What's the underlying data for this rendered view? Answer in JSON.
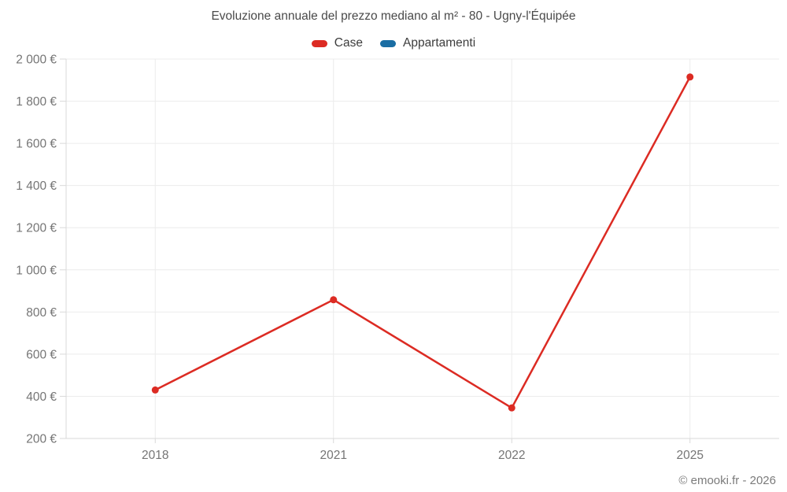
{
  "header": {
    "title": "Evoluzione annuale del prezzo mediano al m² - 80 - Ugny-l'Équipée"
  },
  "legend": {
    "items": [
      {
        "label": "Case",
        "color": "#dc2b23"
      },
      {
        "label": "Appartamenti",
        "color": "#1a6da3"
      }
    ]
  },
  "footer": {
    "attribution": "© emooki.fr - 2026"
  },
  "chart_data": {
    "type": "line",
    "title": "Evoluzione annuale del prezzo mediano al m² - 80 - Ugny-l'Équipée",
    "categories": [
      "2018",
      "2021",
      "2022",
      "2025"
    ],
    "series": [
      {
        "name": "Case",
        "color": "#dc2b23",
        "values": [
          430,
          858,
          345,
          1915
        ]
      },
      {
        "name": "Appartamenti",
        "color": "#1a6da3",
        "values": []
      }
    ],
    "xlabel": "",
    "ylabel": "",
    "ylim": [
      200,
      2000
    ],
    "ytick_step": 200,
    "ytick_labels": [
      "200 €",
      "400 €",
      "600 €",
      "800 €",
      "1 000 €",
      "1 200 €",
      "1 400 €",
      "1 600 €",
      "1 800 €",
      "2 000 €"
    ],
    "grid": true,
    "legend_position": "top",
    "colors": {
      "grid": "#ececec",
      "axis": "#d9d9d9",
      "tick_text": "#757575"
    }
  }
}
